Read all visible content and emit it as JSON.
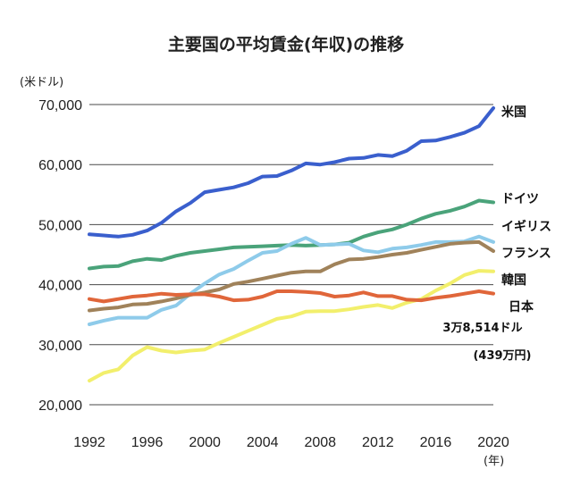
{
  "chart_data": {
    "type": "line",
    "title": "主要国の平均賃金(年収)の推移",
    "ylabel": "(米ドル)",
    "xlabel": "(年)",
    "ylim": [
      20000,
      70000
    ],
    "xlim": [
      1992,
      2020
    ],
    "y_ticks": [
      20000,
      30000,
      40000,
      50000,
      60000,
      70000
    ],
    "y_tick_labels": [
      "20,000",
      "30,000",
      "40,000",
      "50,000",
      "60,000",
      "70,000"
    ],
    "x_ticks": [
      1992,
      1996,
      2000,
      2004,
      2008,
      2012,
      2016,
      2020
    ],
    "x_tick_labels": [
      "1992",
      "1996",
      "2000",
      "2004",
      "2008",
      "2012",
      "2016",
      "2020"
    ],
    "x": [
      1992,
      1993,
      1994,
      1995,
      1996,
      1997,
      1998,
      1999,
      2000,
      2001,
      2002,
      2003,
      2004,
      2005,
      2006,
      2007,
      2008,
      2009,
      2010,
      2011,
      2012,
      2013,
      2014,
      2015,
      2016,
      2017,
      2018,
      2019,
      2020
    ],
    "series": [
      {
        "name": "米国",
        "color": "#3a5fcd",
        "values": [
          48400,
          48200,
          48000,
          48300,
          49000,
          50300,
          52200,
          53600,
          55400,
          55800,
          56200,
          56900,
          58000,
          58100,
          59000,
          60200,
          60000,
          60400,
          61000,
          61100,
          61600,
          61400,
          62300,
          63900,
          64000,
          64600,
          65300,
          66400,
          69400
        ]
      },
      {
        "name": "ドイツ",
        "color": "#4aa37a",
        "values": [
          42700,
          43000,
          43100,
          43900,
          44300,
          44100,
          44800,
          45300,
          45600,
          45900,
          46200,
          46300,
          46400,
          46500,
          46600,
          46500,
          46600,
          46700,
          47000,
          48000,
          48700,
          49200,
          50000,
          51000,
          51800,
          52300,
          53000,
          54000,
          53700
        ]
      },
      {
        "name": "イギリス",
        "color": "#8ecbea",
        "values": [
          33400,
          34000,
          34500,
          34500,
          34500,
          35800,
          36500,
          38500,
          40200,
          41700,
          42600,
          44000,
          45300,
          45600,
          46800,
          47800,
          46600,
          46700,
          46800,
          45700,
          45400,
          46000,
          46200,
          46600,
          47100,
          47100,
          47200,
          48000,
          47100
        ]
      },
      {
        "name": "フランス",
        "color": "#a0825a",
        "values": [
          35700,
          36000,
          36200,
          36700,
          36800,
          37200,
          37700,
          38300,
          38700,
          39200,
          40100,
          40500,
          41000,
          41500,
          42000,
          42200,
          42200,
          43400,
          44200,
          44300,
          44600,
          45000,
          45300,
          45800,
          46300,
          46800,
          47000,
          47100,
          45600
        ]
      },
      {
        "name": "韓国",
        "color": "#f2ef6c",
        "values": [
          24000,
          25300,
          25900,
          28200,
          29600,
          29000,
          28700,
          29000,
          29200,
          30300,
          31300,
          32300,
          33300,
          34300,
          34700,
          35500,
          35600,
          35600,
          35900,
          36300,
          36600,
          36100,
          37000,
          37600,
          39000,
          40200,
          41600,
          42300,
          42200
        ]
      },
      {
        "name": "日本",
        "color": "#e0663a",
        "values": [
          37600,
          37200,
          37600,
          38000,
          38200,
          38500,
          38300,
          38400,
          38400,
          38000,
          37400,
          37500,
          38000,
          38900,
          38900,
          38800,
          38600,
          38000,
          38200,
          38700,
          38100,
          38100,
          37500,
          37400,
          37800,
          38100,
          38500,
          38900,
          38514
        ]
      }
    ],
    "annotations": [
      "3万8,514ドル",
      "(439万円)"
    ]
  }
}
